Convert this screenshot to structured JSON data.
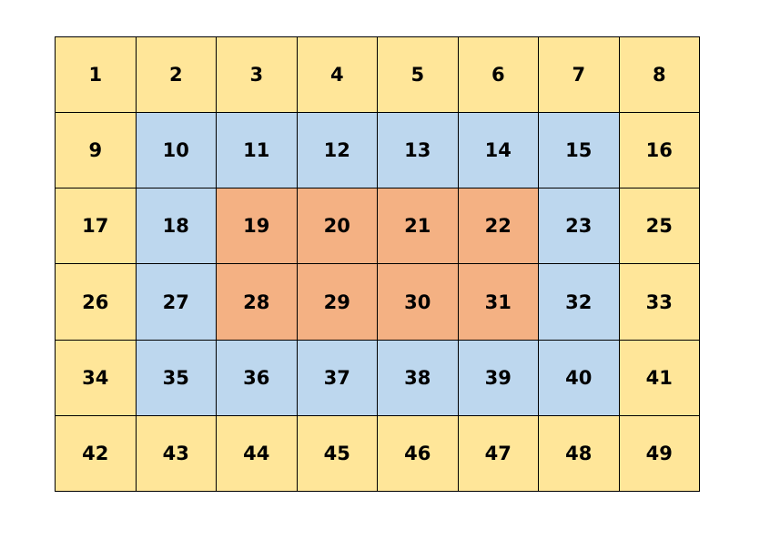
{
  "colors": {
    "outer": "#FFE699",
    "middle": "#BDD7EE",
    "inner": "#F4B183"
  },
  "rows": [
    [
      {
        "label": "1",
        "zone": "outer"
      },
      {
        "label": "2",
        "zone": "outer"
      },
      {
        "label": "3",
        "zone": "outer"
      },
      {
        "label": "4",
        "zone": "outer"
      },
      {
        "label": "5",
        "zone": "outer"
      },
      {
        "label": "6",
        "zone": "outer"
      },
      {
        "label": "7",
        "zone": "outer"
      },
      {
        "label": "8",
        "zone": "outer"
      }
    ],
    [
      {
        "label": "9",
        "zone": "outer"
      },
      {
        "label": "10",
        "zone": "middle"
      },
      {
        "label": "11",
        "zone": "middle"
      },
      {
        "label": "12",
        "zone": "middle"
      },
      {
        "label": "13",
        "zone": "middle"
      },
      {
        "label": "14",
        "zone": "middle"
      },
      {
        "label": "15",
        "zone": "middle"
      },
      {
        "label": "16",
        "zone": "outer"
      }
    ],
    [
      {
        "label": "17",
        "zone": "outer"
      },
      {
        "label": "18",
        "zone": "middle"
      },
      {
        "label": "19",
        "zone": "inner"
      },
      {
        "label": "20",
        "zone": "inner"
      },
      {
        "label": "21",
        "zone": "inner"
      },
      {
        "label": "22",
        "zone": "inner"
      },
      {
        "label": "23",
        "zone": "middle"
      },
      {
        "label": "25",
        "zone": "outer"
      }
    ],
    [
      {
        "label": "26",
        "zone": "outer"
      },
      {
        "label": "27",
        "zone": "middle"
      },
      {
        "label": "28",
        "zone": "inner"
      },
      {
        "label": "29",
        "zone": "inner"
      },
      {
        "label": "30",
        "zone": "inner"
      },
      {
        "label": "31",
        "zone": "inner"
      },
      {
        "label": "32",
        "zone": "middle"
      },
      {
        "label": "33",
        "zone": "outer"
      }
    ],
    [
      {
        "label": "34",
        "zone": "outer"
      },
      {
        "label": "35",
        "zone": "middle"
      },
      {
        "label": "36",
        "zone": "middle"
      },
      {
        "label": "37",
        "zone": "middle"
      },
      {
        "label": "38",
        "zone": "middle"
      },
      {
        "label": "39",
        "zone": "middle"
      },
      {
        "label": "40",
        "zone": "middle"
      },
      {
        "label": "41",
        "zone": "outer"
      }
    ],
    [
      {
        "label": "42",
        "zone": "outer"
      },
      {
        "label": "43",
        "zone": "outer"
      },
      {
        "label": "44",
        "zone": "outer"
      },
      {
        "label": "45",
        "zone": "outer"
      },
      {
        "label": "46",
        "zone": "outer"
      },
      {
        "label": "47",
        "zone": "outer"
      },
      {
        "label": "48",
        "zone": "outer"
      },
      {
        "label": "49",
        "zone": "outer"
      }
    ]
  ]
}
